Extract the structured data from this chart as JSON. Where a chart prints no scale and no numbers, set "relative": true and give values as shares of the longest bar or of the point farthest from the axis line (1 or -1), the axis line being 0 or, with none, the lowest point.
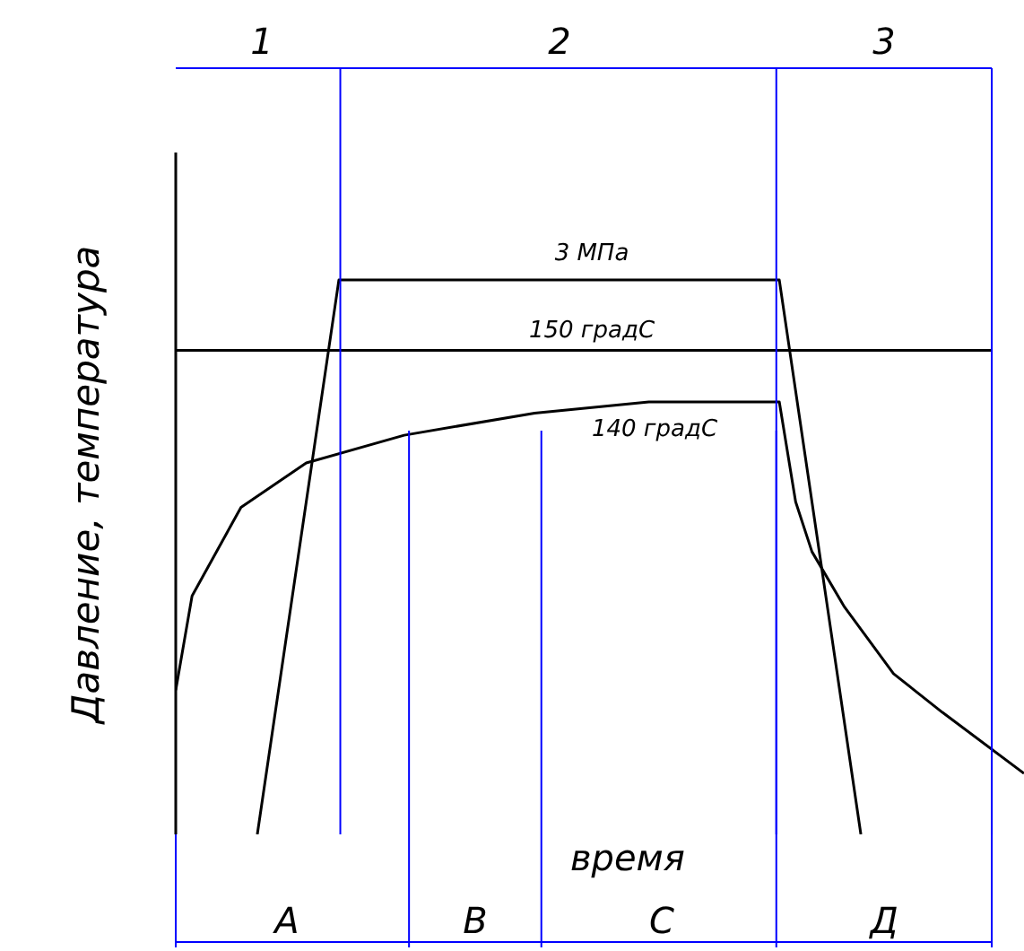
{
  "chart_data": {
    "type": "line",
    "relative": true,
    "xlabel": "время",
    "ylabel": "Давление, температура",
    "marker": "none",
    "line_style": "solid",
    "grid": "x",
    "categories": [
      null,
      null,
      null,
      null,
      null,
      null,
      null,
      null,
      null,
      null,
      null,
      null,
      null,
      null,
      null,
      null,
      null,
      null,
      null,
      null,
      null,
      null,
      null,
      null,
      null,
      null,
      null,
      null,
      null,
      null,
      null,
      null,
      null,
      null,
      null,
      null,
      null,
      null,
      null,
      null,
      null,
      null,
      null,
      null,
      null,
      null,
      null,
      null,
      null,
      null,
      null,
      null,
      null
    ],
    "series": [
      {
        "color": "#000000",
        "values": [
          null,
          null,
          null,
          null,
          null,
          0,
          null,
          null,
          null,
          null,
          1,
          null,
          null,
          null,
          null,
          null,
          null,
          null,
          null,
          null,
          null,
          null,
          null,
          null,
          null,
          null,
          null,
          null,
          null,
          null,
          null,
          null,
          null,
          null,
          null,
          null,
          null,
          1,
          null,
          null,
          null,
          null,
          0,
          null,
          null,
          null,
          null,
          null,
          null,
          null,
          null,
          null,
          null
        ]
      },
      {
        "color": "#000000",
        "values": [
          0.873,
          null,
          null,
          null,
          null,
          null,
          null,
          null,
          null,
          null,
          null,
          null,
          null,
          null,
          null,
          null,
          null,
          null,
          null,
          null,
          null,
          null,
          null,
          null,
          null,
          null,
          null,
          null,
          null,
          null,
          null,
          null,
          null,
          null,
          null,
          null,
          null,
          null,
          null,
          null,
          null,
          null,
          null,
          null,
          null,
          null,
          null,
          null,
          null,
          null,
          0.873,
          null,
          null
        ]
      },
      {
        "color": "#000000",
        "values": [
          0.26,
          0.43,
          null,
          null,
          0.59,
          null,
          null,
          null,
          0.67,
          null,
          null,
          null,
          null,
          null,
          0.72,
          null,
          null,
          null,
          null,
          null,
          null,
          null,
          0.76,
          null,
          null,
          null,
          null,
          null,
          null,
          0.78,
          null,
          null,
          null,
          null,
          null,
          null,
          null,
          0.78,
          0.6,
          0.51,
          null,
          0.41,
          null,
          null,
          0.29,
          null,
          null,
          0.22,
          null,
          null,
          null,
          null,
          0.11
        ]
      }
    ],
    "annotations": [
      "1",
      "2",
      "3",
      "А",
      "В",
      "С",
      "Д",
      "3 МПа",
      "150 градС",
      "140 градС"
    ]
  }
}
